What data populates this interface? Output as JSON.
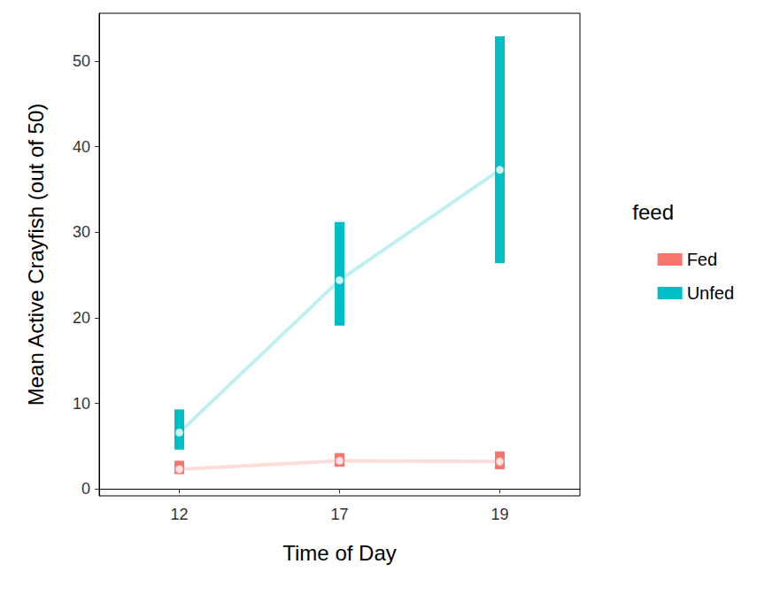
{
  "chart_data": {
    "type": "line",
    "x_label": "Time of Day",
    "y_label": "Mean Active Crayfish (out of 50)",
    "legend_title": "feed",
    "categories": [
      "12",
      "17",
      "19"
    ],
    "series": [
      {
        "name": "Fed",
        "color": "#F8766D",
        "values": [
          2.3,
          3.3,
          3.2
        ],
        "lower": [
          1.75,
          2.6,
          2.3
        ],
        "upper": [
          3.3,
          4.2,
          4.4
        ]
      },
      {
        "name": "Unfed",
        "color": "#00BFC4",
        "values": [
          6.6,
          24.4,
          37.3
        ],
        "lower": [
          4.6,
          19.1,
          26.4
        ],
        "upper": [
          9.3,
          31.2,
          52.9
        ]
      }
    ],
    "ylim": [
      -0.8,
      55.6
    ],
    "yticks": [
      0,
      10,
      20,
      30,
      40,
      50
    ],
    "grid": false,
    "legend": "right",
    "marker": "circle"
  }
}
